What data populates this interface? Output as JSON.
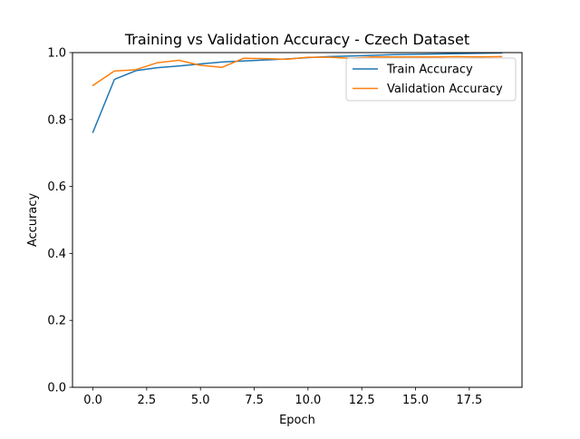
{
  "chart_data": {
    "type": "line",
    "title": "Training vs Validation Accuracy - Czech Dataset",
    "xlabel": "Epoch",
    "ylabel": "Accuracy",
    "xlim": [
      -0.95,
      19.95
    ],
    "ylim": [
      0.0,
      1.0
    ],
    "xticks": [
      0.0,
      2.5,
      5.0,
      7.5,
      10.0,
      12.5,
      15.0,
      17.5
    ],
    "xtick_labels": [
      "0.0",
      "2.5",
      "5.0",
      "7.5",
      "10.0",
      "12.5",
      "15.0",
      "17.5"
    ],
    "yticks": [
      0.0,
      0.2,
      0.4,
      0.6,
      0.8,
      1.0
    ],
    "ytick_labels": [
      "0.0",
      "0.2",
      "0.4",
      "0.6",
      "0.8",
      "1.0"
    ],
    "grid": false,
    "legend_position": "upper-right",
    "x": [
      0,
      1,
      2,
      3,
      4,
      5,
      6,
      7,
      8,
      9,
      10,
      11,
      12,
      13,
      14,
      15,
      16,
      17,
      18,
      19
    ],
    "series": [
      {
        "name": "Train Accuracy",
        "color": "#1f77b4",
        "values": [
          0.762,
          0.92,
          0.946,
          0.955,
          0.96,
          0.966,
          0.972,
          0.975,
          0.978,
          0.981,
          0.985,
          0.988,
          0.99,
          0.992,
          0.994,
          0.995,
          0.996,
          0.997,
          0.998,
          0.999
        ]
      },
      {
        "name": "Validation Accuracy",
        "color": "#ff7f0e",
        "values": [
          0.902,
          0.945,
          0.949,
          0.97,
          0.977,
          0.962,
          0.956,
          0.983,
          0.982,
          0.98,
          0.986,
          0.986,
          0.983,
          0.987,
          0.987,
          0.987,
          0.987,
          0.988,
          0.987,
          0.988
        ]
      }
    ]
  }
}
